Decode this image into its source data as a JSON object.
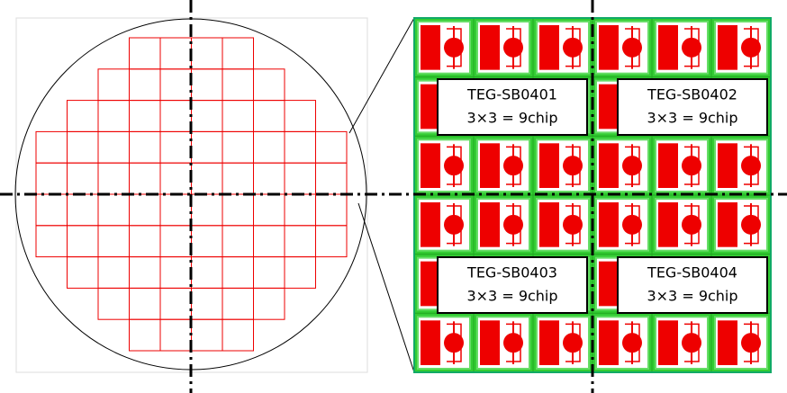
{
  "labels": [
    {
      "name": "TEG-SB0401",
      "spec": "3×3 = 9chip"
    },
    {
      "name": "TEG-SB0402",
      "spec": "3×3 = 9chip"
    },
    {
      "name": "TEG-SB0403",
      "spec": "3×3 = 9chip"
    },
    {
      "name": "TEG-SB0404",
      "spec": "3×3 = 9chip"
    }
  ]
}
